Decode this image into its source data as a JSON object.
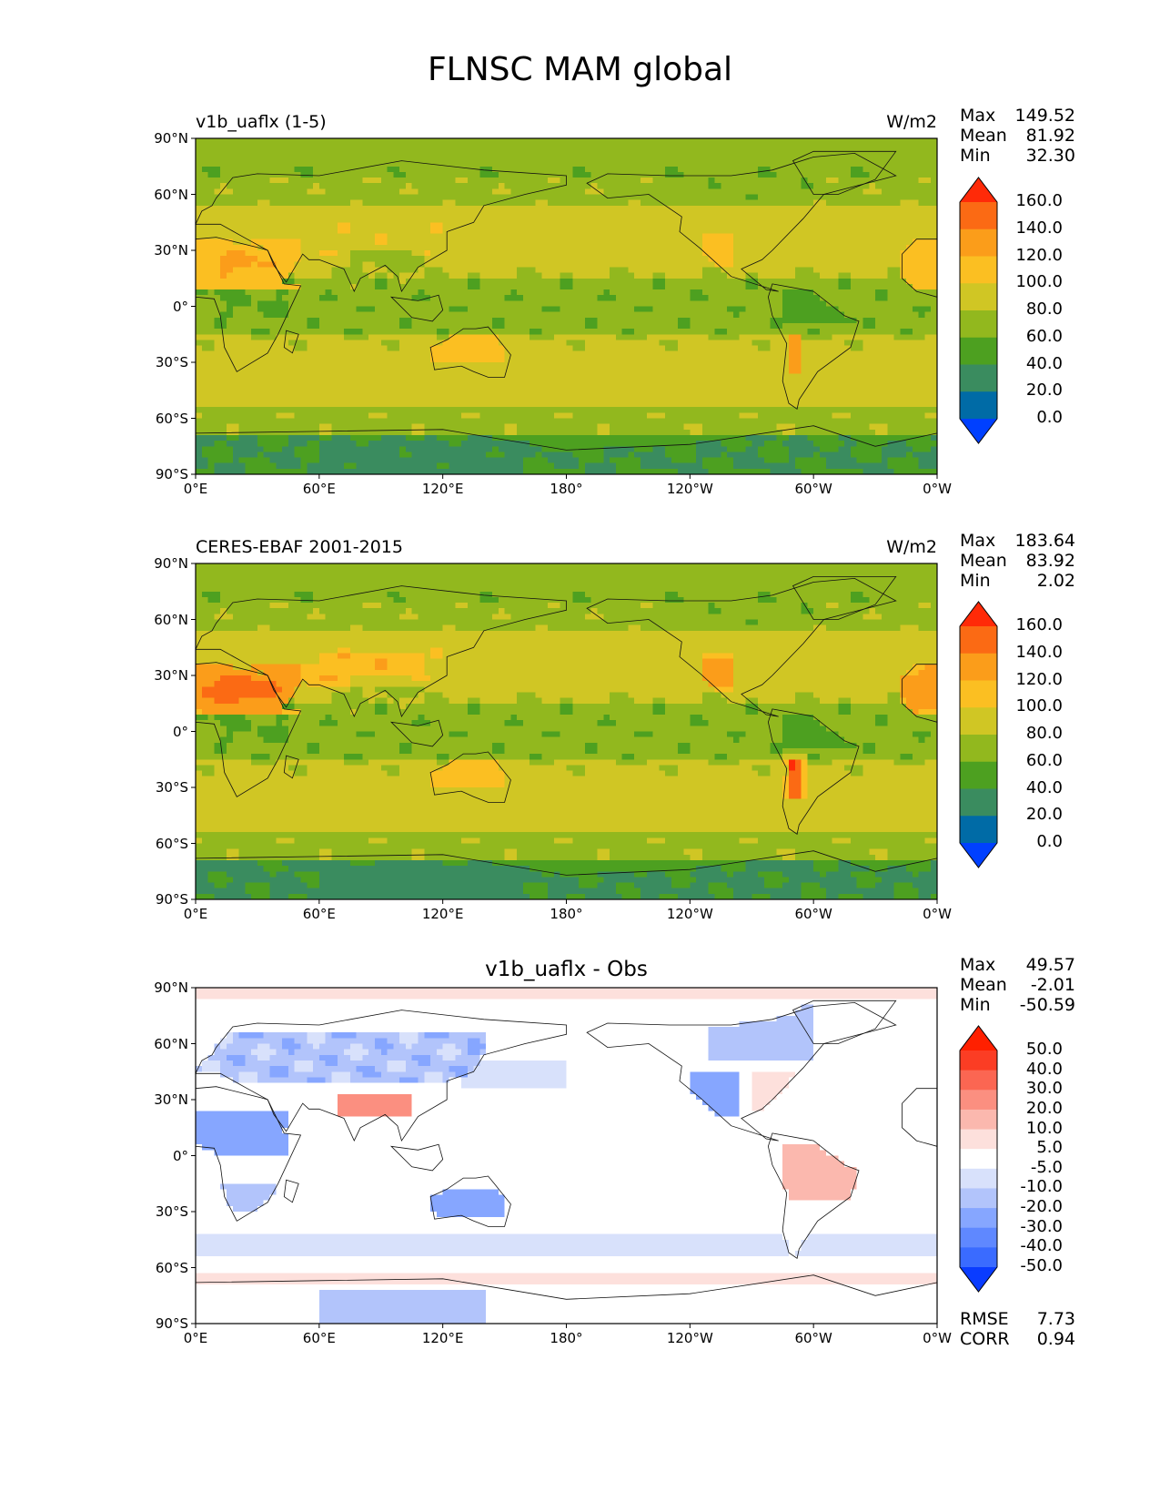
{
  "figure_title": "FLNSC MAM global",
  "chart_data": [
    {
      "type": "heatmap",
      "title_left": "v1b_uaflx (1-5)",
      "title_right": "W/m2",
      "stats": [
        {
          "label": "Max",
          "value": "149.52"
        },
        {
          "label": "Mean",
          "value": "81.92"
        },
        {
          "label": "Min",
          "value": "32.30"
        }
      ],
      "x_ticks": [
        "0°E",
        "60°E",
        "120°E",
        "180°",
        "120°W",
        "60°W",
        "0°W"
      ],
      "y_ticks": [
        "90°N",
        "60°N",
        "30°N",
        "0°",
        "30°S",
        "60°S",
        "90°S"
      ],
      "xlim": [
        0,
        360
      ],
      "ylim": [
        -90,
        90
      ],
      "colorbar": {
        "levels": [
          "0.0",
          "20.0",
          "40.0",
          "60.0",
          "80.0",
          "100.0",
          "120.0",
          "140.0",
          "160.0"
        ],
        "colors": [
          "#0040ff",
          "#006ba6",
          "#3a8c5f",
          "#4da020",
          "#92b81e",
          "#d0c624",
          "#fbbf22",
          "#fb9d1a",
          "#fb6a14",
          "#ff2a08"
        ],
        "extend": "both"
      },
      "field": "model"
    },
    {
      "type": "heatmap",
      "title_left": "CERES-EBAF 2001-2015",
      "title_right": "W/m2",
      "stats": [
        {
          "label": "Max",
          "value": "183.64"
        },
        {
          "label": "Mean",
          "value": "83.92"
        },
        {
          "label": "Min",
          "value": "2.02"
        }
      ],
      "x_ticks": [
        "0°E",
        "60°E",
        "120°E",
        "180°",
        "120°W",
        "60°W",
        "0°W"
      ],
      "y_ticks": [
        "90°N",
        "60°N",
        "30°N",
        "0°",
        "30°S",
        "60°S",
        "90°S"
      ],
      "xlim": [
        0,
        360
      ],
      "ylim": [
        -90,
        90
      ],
      "colorbar": {
        "levels": [
          "0.0",
          "20.0",
          "40.0",
          "60.0",
          "80.0",
          "100.0",
          "120.0",
          "140.0",
          "160.0"
        ],
        "colors": [
          "#0040ff",
          "#006ba6",
          "#3a8c5f",
          "#4da020",
          "#92b81e",
          "#d0c624",
          "#fbbf22",
          "#fb9d1a",
          "#fb6a14",
          "#ff2a08"
        ],
        "extend": "both"
      },
      "field": "obs"
    },
    {
      "type": "heatmap",
      "title_center": "v1b_uaflx - Obs",
      "stats": [
        {
          "label": "Max",
          "value": "49.57"
        },
        {
          "label": "Mean",
          "value": "-2.01"
        },
        {
          "label": "Min",
          "value": "-50.59"
        }
      ],
      "metrics": [
        {
          "label": "RMSE",
          "value": "7.73"
        },
        {
          "label": "CORR",
          "value": "0.94"
        }
      ],
      "x_ticks": [
        "0°E",
        "60°E",
        "120°E",
        "180°",
        "120°W",
        "60°W",
        "0°W"
      ],
      "y_ticks": [
        "90°N",
        "60°N",
        "30°N",
        "0°",
        "30°S",
        "60°S",
        "90°S"
      ],
      "xlim": [
        0,
        360
      ],
      "ylim": [
        -90,
        90
      ],
      "colorbar": {
        "levels": [
          "-50.0",
          "-40.0",
          "-30.0",
          "-20.0",
          "-10.0",
          "-5.0",
          "5.0",
          "10.0",
          "20.0",
          "30.0",
          "40.0",
          "50.0"
        ],
        "colors": [
          "#0a3cff",
          "#3a6bff",
          "#5f88ff",
          "#86a6ff",
          "#b2c4fb",
          "#d8e1fb",
          "#ffffff",
          "#fde0dc",
          "#fbb8ae",
          "#fb8f80",
          "#fb6652",
          "#fb3d24",
          "#ff2000"
        ],
        "extend": "both"
      },
      "field": "diff"
    }
  ]
}
